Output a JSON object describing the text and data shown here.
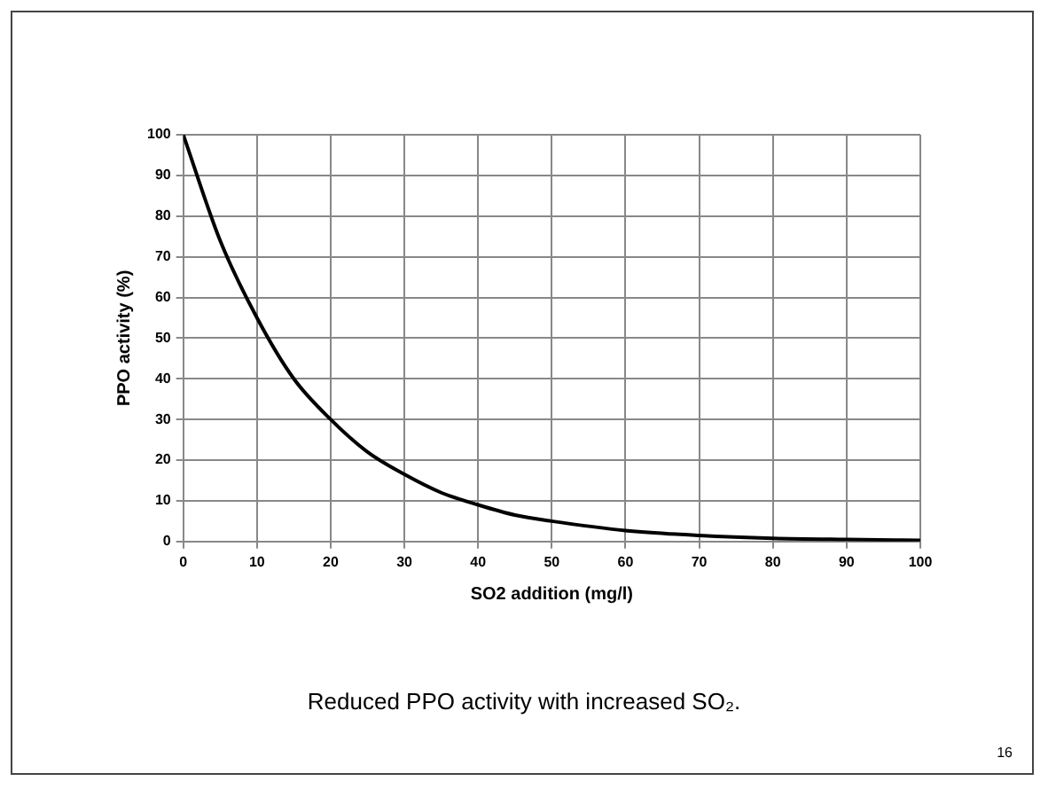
{
  "chart_data": {
    "type": "line",
    "xlabel": "SO2 addition (mg/l)",
    "ylabel": "PPO activity (%)",
    "x": [
      0,
      5,
      10,
      15,
      20,
      25,
      30,
      35,
      40,
      45,
      50,
      60,
      70,
      80,
      90,
      100
    ],
    "series": [
      {
        "color": "#000000",
        "values": [
          100,
          74,
          55,
          40,
          30,
          22,
          16.5,
          12,
          9,
          6.5,
          5,
          2.7,
          1.5,
          0.8,
          0.5,
          0.3
        ]
      }
    ],
    "xlim": [
      0,
      100
    ],
    "xticks": [
      0,
      10,
      20,
      30,
      40,
      50,
      60,
      70,
      80,
      90,
      100
    ],
    "ylim": [
      0,
      100
    ],
    "yticks": [
      0,
      10,
      20,
      30,
      40,
      50,
      60,
      70,
      80,
      90,
      100
    ],
    "grid": true,
    "legend": false,
    "marker": "none",
    "line_style": "solid",
    "annotations": [
      "Reduced PPO activity with increased SO₂.",
      "16"
    ]
  }
}
